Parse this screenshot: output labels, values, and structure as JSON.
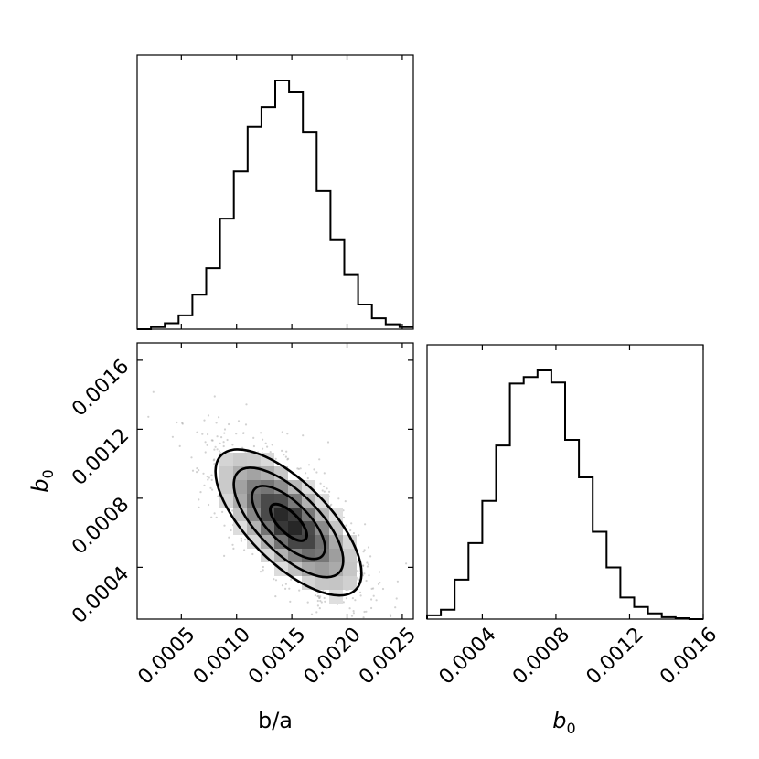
{
  "chart_data": {
    "type": "corner",
    "parameters": [
      "b/a",
      "b0"
    ],
    "axis_labels": {
      "x_joint": "b/a",
      "y_joint": "b",
      "y_joint_sub": "0",
      "x_hist_b0": "b",
      "x_hist_b0_sub": "0"
    },
    "hist_ba": {
      "xlim": [
        0.0001,
        0.0026
      ],
      "edges": [
        0.0001,
        0.000225,
        0.00035,
        0.000475,
        0.0006,
        0.000725,
        0.00085,
        0.000975,
        0.0011,
        0.001225,
        0.00135,
        0.001475,
        0.0016,
        0.001725,
        0.00185,
        0.001975,
        0.0021,
        0.002225,
        0.00235,
        0.002475,
        0.0026
      ],
      "counts": [
        0,
        2,
        6,
        14,
        35,
        62,
        112,
        160,
        205,
        225,
        252,
        240,
        200,
        140,
        91,
        55,
        25,
        11,
        5,
        2
      ]
    },
    "hist_b0": {
      "xlim": [
        0.0001,
        0.0016
      ],
      "edges": [
        0.0001,
        0.000175,
        0.00025,
        0.000325,
        0.0004,
        0.000475,
        0.00055,
        0.000625,
        0.0007,
        0.000775,
        0.00085,
        0.000925,
        0.001,
        0.001075,
        0.00115,
        0.001225,
        0.0013,
        0.001375,
        0.00145,
        0.001525,
        0.0016
      ],
      "counts": [
        4,
        10,
        42,
        81,
        126,
        185,
        251,
        258,
        265,
        252,
        191,
        151,
        93,
        55,
        23,
        13,
        6,
        2,
        1,
        0
      ]
    },
    "joint": {
      "xlim": [
        0.0001,
        0.0026
      ],
      "ylim": [
        0.0001,
        0.0017
      ],
      "center": [
        0.00147,
        0.00066
      ],
      "contour_levels": [
        0.5,
        1.0,
        1.5,
        2.0
      ]
    },
    "ticks": {
      "ba": [
        0.0005,
        0.001,
        0.0015,
        0.002,
        0.0025
      ],
      "ba_labels": [
        "0.0005",
        "0.0010",
        "0.0015",
        "0.0020",
        "0.0025"
      ],
      "b0": [
        0.0004,
        0.0008,
        0.0012,
        0.0016
      ],
      "b0_labels": [
        "0.0004",
        "0.0008",
        "0.0012",
        "0.0016"
      ]
    }
  }
}
